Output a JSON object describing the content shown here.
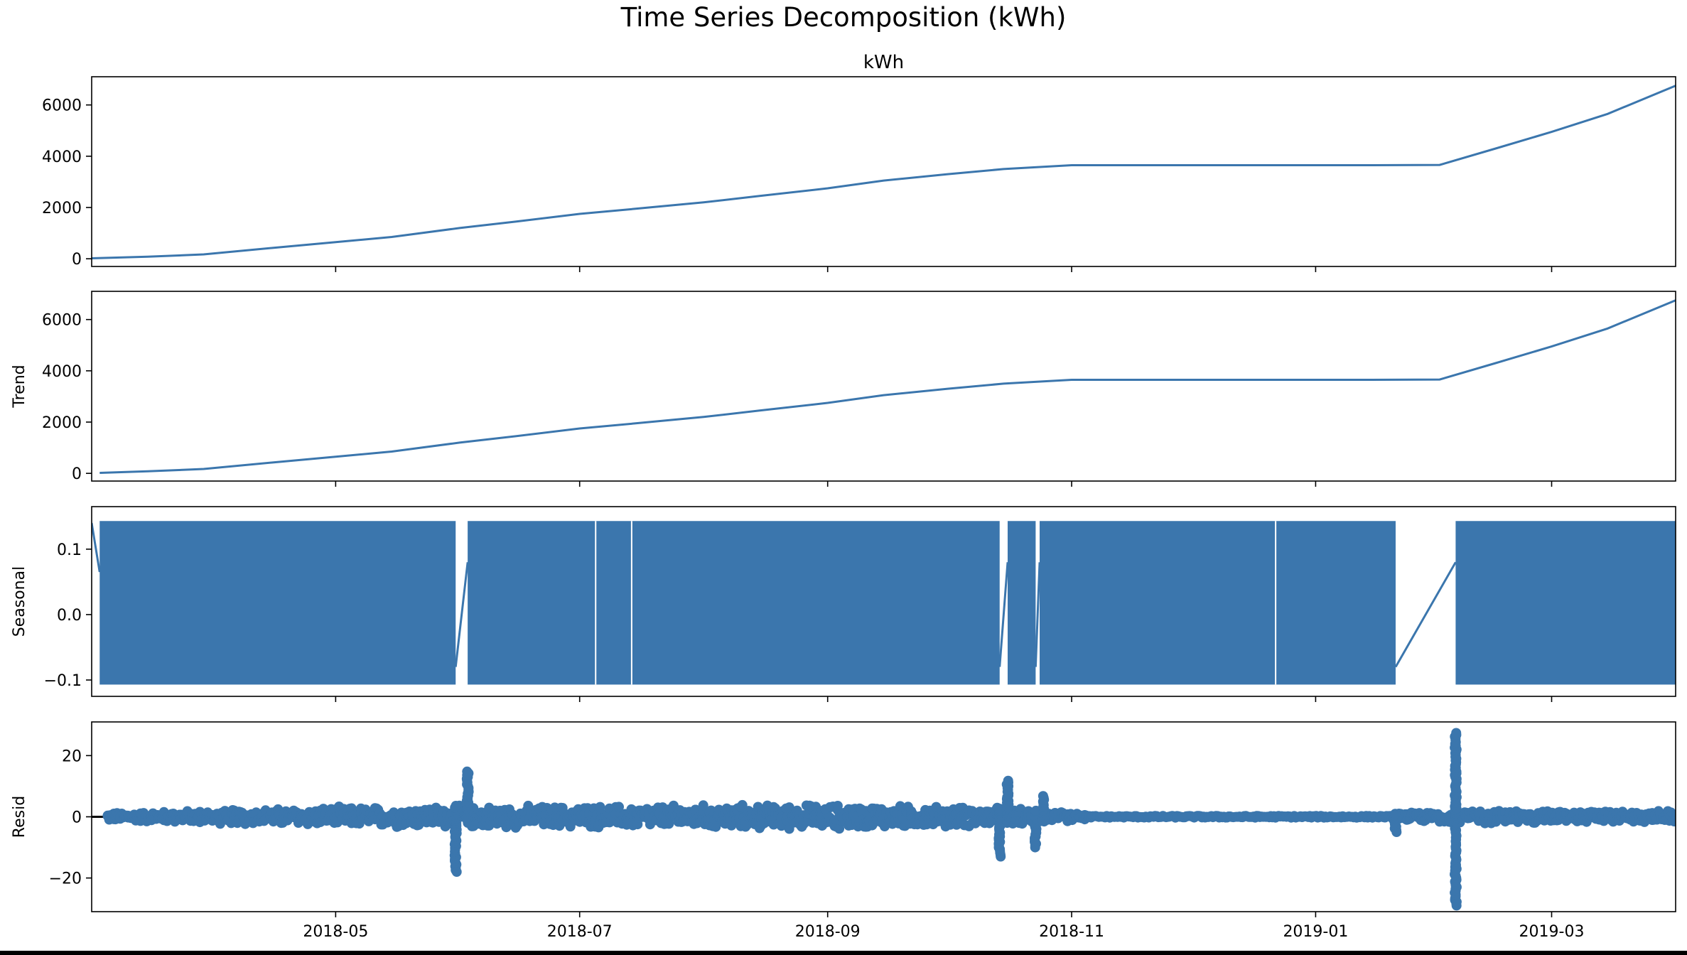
{
  "chart_data": {
    "type": "line",
    "title": "Time Series Decomposition (kWh)",
    "x_ticks": [
      "2018-05",
      "2018-07",
      "2018-09",
      "2018-11",
      "2019-01",
      "2019-03"
    ],
    "x_range": [
      "2018-03-01",
      "2019-04-01"
    ],
    "line_color": "#3b76ad",
    "panels": [
      {
        "key": "observed",
        "title": "kWh",
        "ylabel": "",
        "ylim": [
          -300,
          7100
        ],
        "yticks": [
          {
            "v": 0,
            "label": "0"
          },
          {
            "v": 2000,
            "label": "2000"
          },
          {
            "v": 4000,
            "label": "4000"
          },
          {
            "v": 6000,
            "label": "6000"
          }
        ],
        "series": {
          "x": [
            "2018-03-01",
            "2018-03-15",
            "2018-03-29",
            "2018-04-15",
            "2018-05-01",
            "2018-05-15",
            "2018-06-01",
            "2018-06-15",
            "2018-07-01",
            "2018-07-15",
            "2018-08-01",
            "2018-08-15",
            "2018-09-01",
            "2018-09-15",
            "2018-10-01",
            "2018-10-15",
            "2018-11-01",
            "2018-11-15",
            "2018-12-01",
            "2018-12-15",
            "2019-01-01",
            "2019-01-15",
            "2019-02-01",
            "2019-02-15",
            "2019-03-01",
            "2019-03-15",
            "2019-04-01"
          ],
          "y": [
            20,
            80,
            170,
            420,
            650,
            850,
            1200,
            1450,
            1750,
            1950,
            2200,
            2450,
            2750,
            3050,
            3300,
            3500,
            3650,
            3650,
            3650,
            3650,
            3650,
            3650,
            3660,
            4300,
            4950,
            5650,
            6750
          ]
        }
      },
      {
        "key": "trend",
        "title": "",
        "ylabel": "Trend",
        "ylim": [
          -300,
          7100
        ],
        "yticks": [
          {
            "v": 0,
            "label": "0"
          },
          {
            "v": 2000,
            "label": "2000"
          },
          {
            "v": 4000,
            "label": "4000"
          },
          {
            "v": 6000,
            "label": "6000"
          }
        ],
        "series": {
          "x": [
            "2018-03-03",
            "2018-03-15",
            "2018-03-29",
            "2018-04-15",
            "2018-05-01",
            "2018-05-15",
            "2018-06-01",
            "2018-06-15",
            "2018-07-01",
            "2018-07-15",
            "2018-08-01",
            "2018-08-15",
            "2018-09-01",
            "2018-09-15",
            "2018-10-01",
            "2018-10-15",
            "2018-11-01",
            "2018-11-15",
            "2018-12-01",
            "2018-12-15",
            "2019-01-01",
            "2019-01-15",
            "2019-02-01",
            "2019-02-15",
            "2019-03-01",
            "2019-03-15",
            "2019-04-01"
          ],
          "y": [
            20,
            80,
            170,
            420,
            650,
            850,
            1200,
            1450,
            1750,
            1950,
            2200,
            2450,
            2750,
            3050,
            3300,
            3500,
            3650,
            3650,
            3650,
            3650,
            3650,
            3650,
            3660,
            4300,
            4950,
            5650,
            6750
          ]
        }
      },
      {
        "key": "seasonal",
        "title": "",
        "ylabel": "Seasonal",
        "ylim": [
          -0.125,
          0.165
        ],
        "yticks": [
          {
            "v": -0.1,
            "label": "−0.1"
          },
          {
            "v": 0,
            "label": "0.0"
          },
          {
            "v": 0.1,
            "label": "0.1"
          }
        ],
        "range": [
          -0.107,
          0.143
        ],
        "blocks": [
          [
            "2018-03-03",
            "2018-05-31"
          ],
          [
            "2018-06-03",
            "2018-07-05"
          ],
          [
            "2018-07-05",
            "2018-07-14"
          ],
          [
            "2018-07-14",
            "2018-10-14"
          ],
          [
            "2018-10-16",
            "2018-10-23"
          ],
          [
            "2018-10-24",
            "2018-12-22"
          ],
          [
            "2018-12-22",
            "2019-01-21"
          ],
          [
            "2019-02-05",
            "2019-04-01"
          ]
        ]
      },
      {
        "key": "resid",
        "title": "",
        "ylabel": "Resid",
        "ylim": [
          -31,
          31
        ],
        "yticks": [
          {
            "v": -20,
            "label": "−20"
          },
          {
            "v": 0,
            "label": "0"
          },
          {
            "v": 20,
            "label": "20"
          }
        ],
        "baseline": 0,
        "envelope": [
          {
            "x": "2018-03-05",
            "amp": 1.5
          },
          {
            "x": "2018-04-01",
            "amp": 2.5
          },
          {
            "x": "2018-05-01",
            "amp": 3.5
          },
          {
            "x": "2018-05-30",
            "amp": 4
          },
          {
            "x": "2018-07-01",
            "amp": 4
          },
          {
            "x": "2018-09-01",
            "amp": 4.5
          },
          {
            "x": "2018-10-12",
            "amp": 3.5
          },
          {
            "x": "2018-10-27",
            "amp": 2
          },
          {
            "x": "2018-11-05",
            "amp": 1.2
          },
          {
            "x": "2019-01-20",
            "amp": 1.2
          },
          {
            "x": "2019-02-08",
            "amp": 2.5
          },
          {
            "x": "2019-04-01",
            "amp": 2
          }
        ],
        "spikes": [
          {
            "x": "2018-05-31",
            "min": -18,
            "max": 4
          },
          {
            "x": "2018-06-03",
            "min": -2,
            "max": 15
          },
          {
            "x": "2018-10-14",
            "min": -13,
            "max": 3
          },
          {
            "x": "2018-10-16",
            "min": -2,
            "max": 12
          },
          {
            "x": "2018-10-23",
            "min": -10,
            "max": 2
          },
          {
            "x": "2018-10-25",
            "min": -1,
            "max": 7
          },
          {
            "x": "2019-01-21",
            "min": -5,
            "max": 1
          },
          {
            "x": "2019-02-05",
            "min": -29,
            "max": 28
          }
        ]
      }
    ]
  }
}
